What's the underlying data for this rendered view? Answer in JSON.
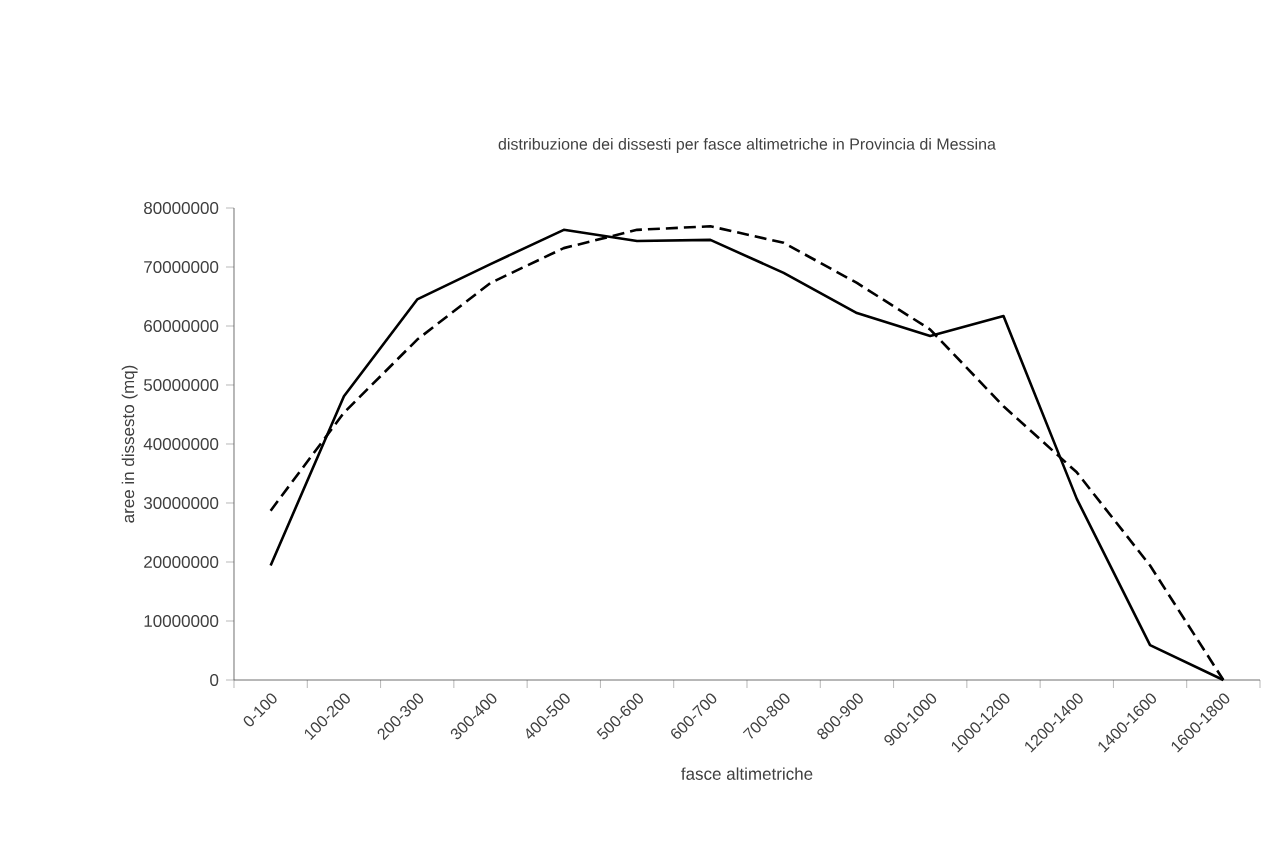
{
  "chart_data": {
    "type": "line",
    "title": "distribuzione dei dissesti per fasce altimetriche in Provincia di Messina",
    "xlabel": "fasce altimetriche",
    "ylabel": "aree in dissesto (mq)",
    "categories": [
      "0-100",
      "100-200",
      "200-300",
      "300-400",
      "400-500",
      "500-600",
      "600-700",
      "700-800",
      "800-900",
      "900-1000",
      "1000-1200",
      "1200-1400",
      "1400-1600",
      "1600-1800"
    ],
    "series": [
      {
        "color": "#000000",
        "line_style": "solid",
        "values": [
          19400000,
          48100000,
          64500000,
          70500000,
          76300000,
          74400000,
          74600000,
          69000000,
          62200000,
          58300000,
          61700000,
          30700000,
          5900000,
          0
        ]
      },
      {
        "color": "#000000",
        "line_style": "dashed",
        "values": [
          28700000,
          45300000,
          57700000,
          67300000,
          73200000,
          76300000,
          76900000,
          74100000,
          67300000,
          59400000,
          46400000,
          35200000,
          19400000,
          0
        ]
      }
    ],
    "ylim": [
      0,
      80000000
    ],
    "yticks": [
      0,
      10000000,
      20000000,
      30000000,
      40000000,
      50000000,
      60000000,
      70000000,
      80000000
    ],
    "marker": "none"
  }
}
